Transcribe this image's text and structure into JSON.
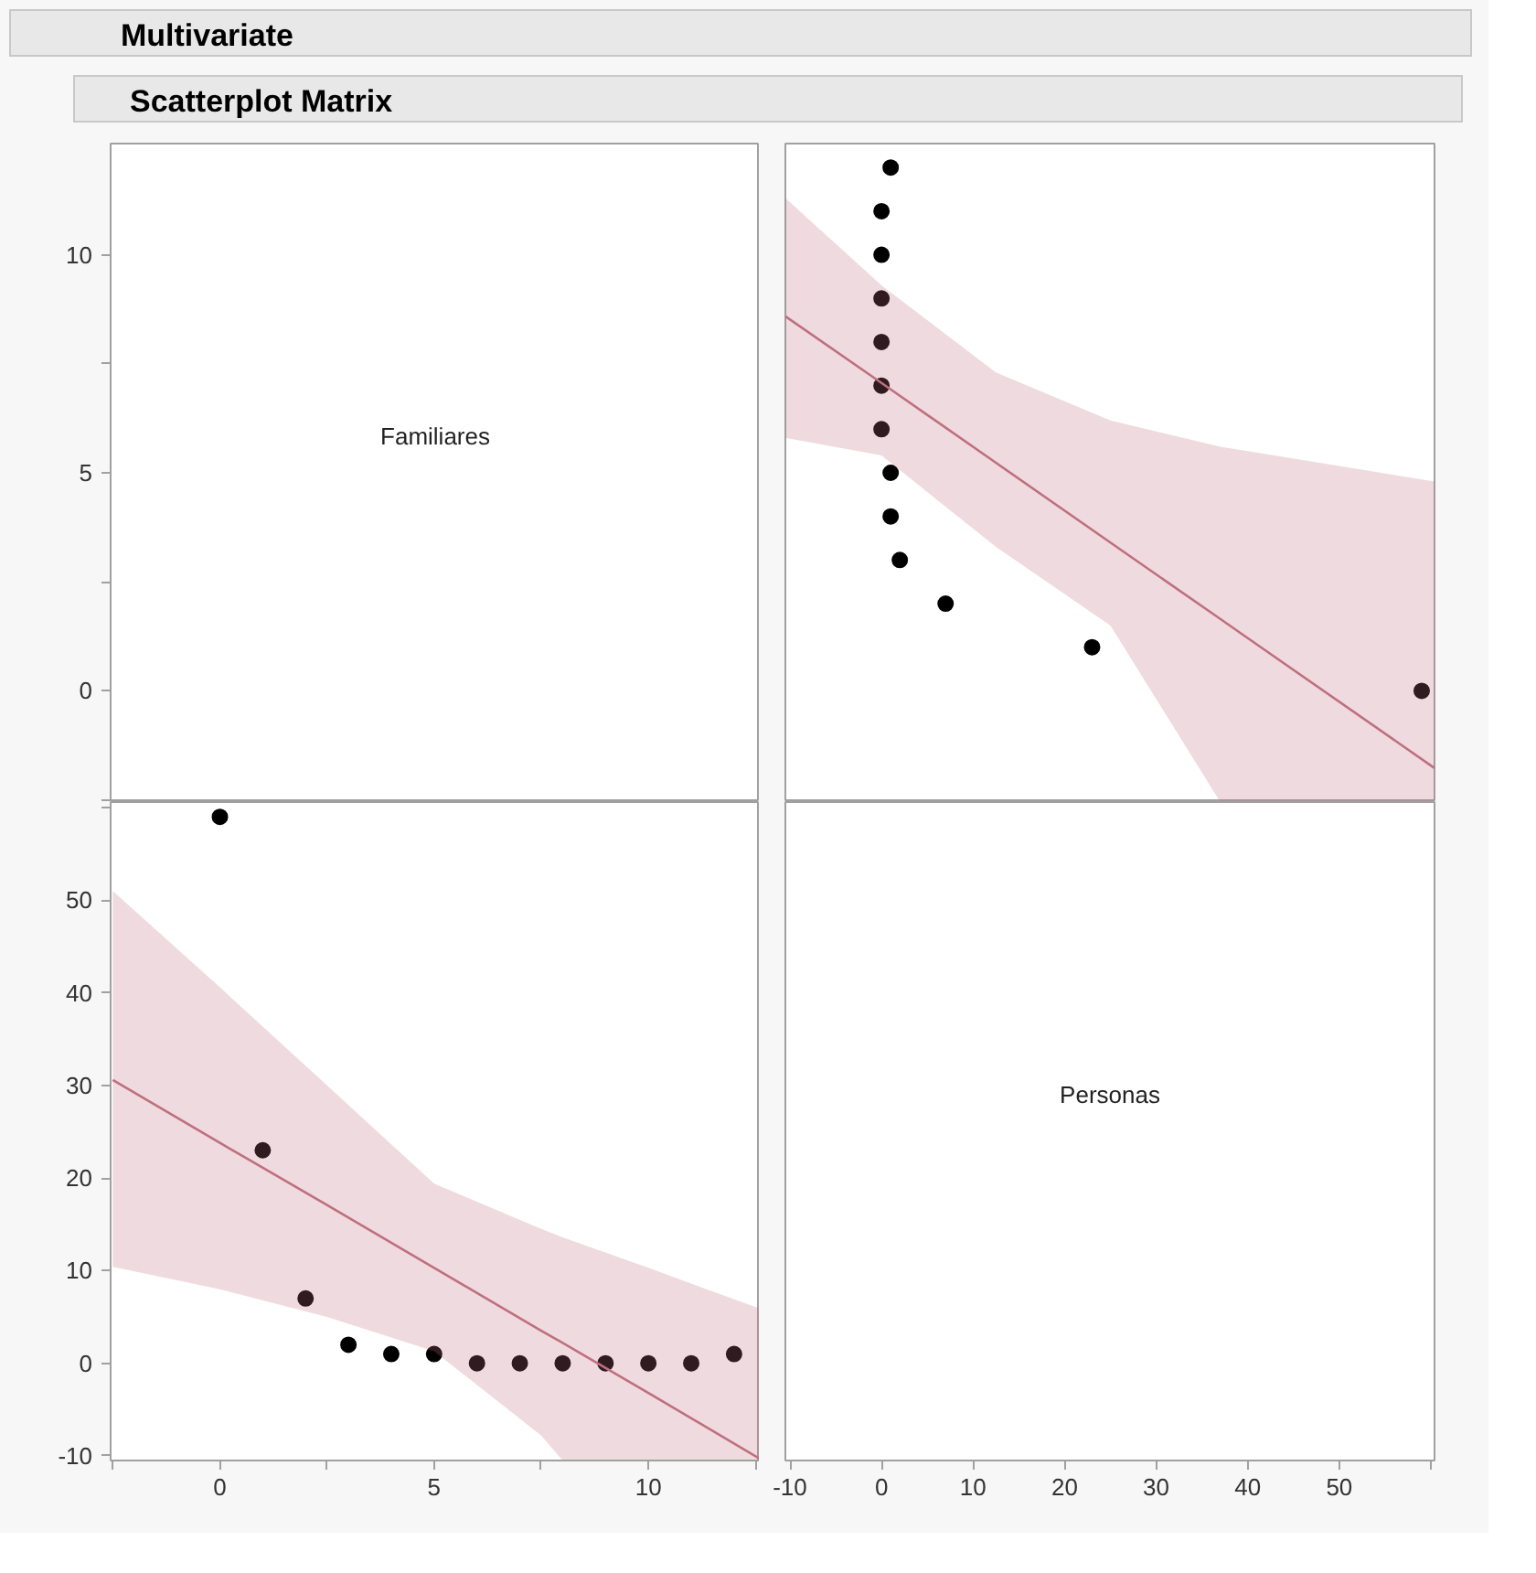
{
  "chart_data": [
    {
      "type": "scatter",
      "title": "Multivariate",
      "subtitle": "Scatterplot Matrix",
      "annotations": [
        "Familiares"
      ],
      "xlim": [
        -2.55,
        12.6
      ],
      "ylim": [
        -2.55,
        12.55
      ],
      "yticks": [
        {
          "value": -2.5,
          "label": null
        },
        0,
        {
          "value": 2.5,
          "label": null
        },
        5,
        {
          "value": 7.5,
          "label": null
        },
        10
      ],
      "tick_labels": "y",
      "grid": false
    },
    {
      "type": "scatter",
      "xlim": [
        -10.5,
        60.4
      ],
      "ylim": [
        -2.55,
        12.55
      ],
      "tick_labels": false,
      "grid": false,
      "series": [
        {
          "type": "scatter",
          "marker": "circle",
          "color": "#000000",
          "x": [
            1,
            0,
            0,
            0,
            0,
            0,
            0,
            1,
            1,
            2,
            7,
            23,
            59
          ],
          "values": [
            12,
            11,
            10,
            9,
            8,
            7,
            6,
            5,
            4,
            3,
            2,
            1,
            0
          ]
        },
        {
          "type": "line",
          "color": "#bf6f7f",
          "x": [
            -10.5,
            0,
            12.5,
            25,
            37,
            40,
            60.4
          ],
          "values": [
            8.59,
            7.06,
            5.23,
            3.4,
            1.65,
            1.21,
            -1.77
          ],
          "lower": [
            5.8,
            5.4,
            3.3,
            1.5,
            -2.55,
            -2.55,
            -2.55
          ],
          "upper": [
            11.3,
            9.3,
            7.3,
            6.2,
            5.6,
            5.5,
            4.8
          ]
        }
      ]
    },
    {
      "type": "scatter",
      "xlim": [
        -2.55,
        12.6
      ],
      "ylim": [
        -10.5,
        60.6
      ],
      "xticks": [
        {
          "value": -2.5,
          "label": null
        },
        0,
        {
          "value": 2.5,
          "label": null
        },
        5,
        {
          "value": 7.5,
          "label": null
        },
        10,
        {
          "value": 12.5,
          "label": null
        }
      ],
      "yticks": [
        -10,
        0,
        10,
        20,
        30,
        40,
        50,
        {
          "value": 60,
          "label": null
        }
      ],
      "grid": false,
      "series": [
        {
          "type": "scatter",
          "marker": "circle",
          "color": "#000000",
          "x": [
            0,
            1,
            2,
            3,
            4,
            5,
            6,
            7,
            8,
            9,
            10,
            11,
            12
          ],
          "values": [
            59,
            23,
            7,
            2,
            1,
            1,
            0,
            0,
            0,
            0,
            0,
            0,
            1
          ]
        },
        {
          "type": "line",
          "color": "#bf6f7f",
          "x": [
            -2.5,
            0,
            2.5,
            5,
            7.5,
            8,
            10,
            12.6
          ],
          "values": [
            30.6,
            23.8,
            17.1,
            10.3,
            3.5,
            2.2,
            -3.2,
            -10.3
          ],
          "lower": [
            10.4,
            8,
            5,
            1.3,
            -7.8,
            -10.5,
            -10.5,
            -10.5
          ],
          "upper": [
            51,
            40.6,
            30,
            19.4,
            14.5,
            13.6,
            10.3,
            5.9
          ]
        }
      ]
    },
    {
      "type": "scatter",
      "annotations": [
        "Personas"
      ],
      "xlim": [
        -10.5,
        60.4
      ],
      "ylim": [
        -10.5,
        60.6
      ],
      "xticks": [
        -10,
        0,
        10,
        20,
        30,
        40,
        50,
        {
          "value": 60,
          "label": null
        }
      ],
      "tick_labels": "x",
      "grid": false
    }
  ]
}
